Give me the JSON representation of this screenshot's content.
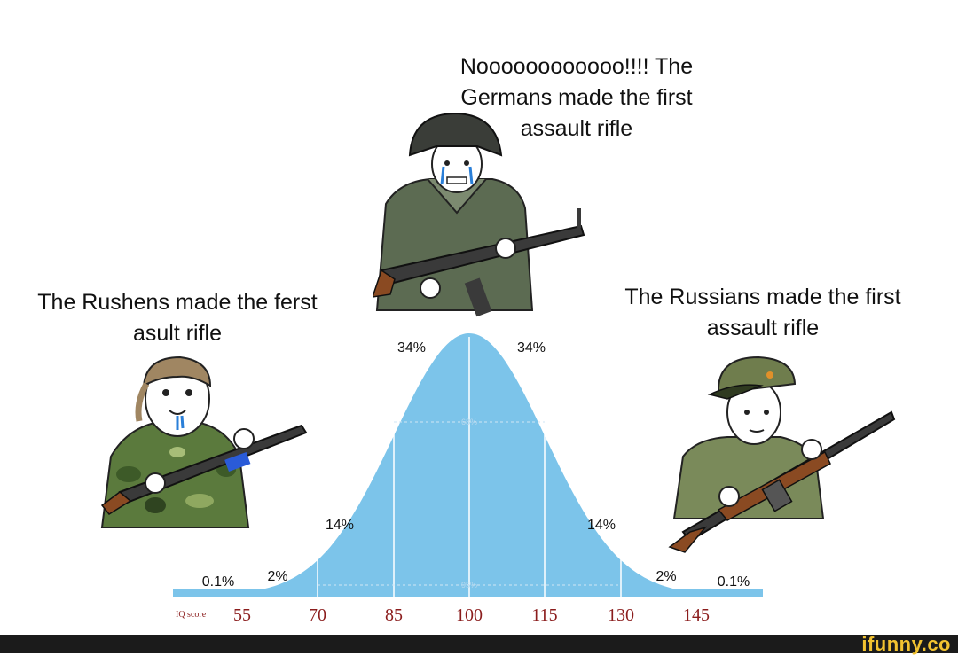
{
  "captions": {
    "left": "The Rushens made the ferst asult rifle",
    "center": "Noooooooooooo!!!! The Germans made the first assault rifle",
    "right": "The Russians made the first assault rifle"
  },
  "distribution": {
    "percent_labels": [
      "0.1%",
      "2%",
      "14%",
      "34%",
      "34%",
      "14%",
      "2%",
      "0.1%"
    ],
    "inner_labels": [
      "68%",
      "95%"
    ],
    "axis_title": "IQ score",
    "ticks": [
      "55",
      "70",
      "85",
      "100",
      "115",
      "130",
      "145"
    ]
  },
  "colors": {
    "curve": "#7cc4ea",
    "axis_text": "#8b1d1d",
    "footer": "#1b1b1b",
    "brand": "#f2c230"
  },
  "footer": {
    "brand": "ifunny.co"
  }
}
